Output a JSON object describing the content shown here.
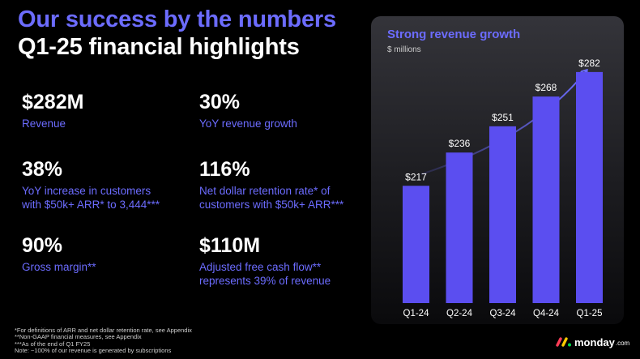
{
  "header": {
    "title": "Our success by the numbers",
    "subtitle": "Q1-25 financial highlights"
  },
  "metrics": [
    {
      "value": "$282M",
      "desc": [
        "Revenue"
      ]
    },
    {
      "value": "30%",
      "desc": [
        "YoY revenue growth"
      ]
    },
    {
      "value": "38%",
      "desc": [
        "YoY increase in customers",
        "with $50k+ ARR* to 3,444***"
      ]
    },
    {
      "value": "116%",
      "desc": [
        "Net dollar retention rate* of",
        "customers with $50k+ ARR***"
      ]
    },
    {
      "value": "90%",
      "desc": [
        "Gross margin**"
      ]
    },
    {
      "value": "$110M",
      "desc": [
        "Adjusted free cash flow**",
        "represents 39% of revenue"
      ]
    }
  ],
  "footnotes": [
    "*For definitions of ARR and net dollar retention rate, see Appendix",
    "**Non-GAAP financial measures, see Appendix",
    "***As of the end of Q1 FY25",
    "Note: ~100% of our revenue is generated by subscriptions"
  ],
  "logo": {
    "name": "monday",
    "suffix": ".com"
  },
  "colors": {
    "accent": "#6c6cff",
    "bar": "#5b4ef0",
    "background": "#000000"
  },
  "chart_data": {
    "type": "bar",
    "title": "Strong revenue growth",
    "subtitle": "$ millions",
    "categories": [
      "Q1-24",
      "Q2-24",
      "Q3-24",
      "Q4-24",
      "Q1-25"
    ],
    "values": [
      217,
      236,
      251,
      268,
      282
    ],
    "data_labels": [
      "$217",
      "$236",
      "$251",
      "$268",
      "$282"
    ],
    "ylim": [
      150,
      300
    ],
    "annotation": "upward growth arrow",
    "grid": false,
    "legend": "none"
  }
}
